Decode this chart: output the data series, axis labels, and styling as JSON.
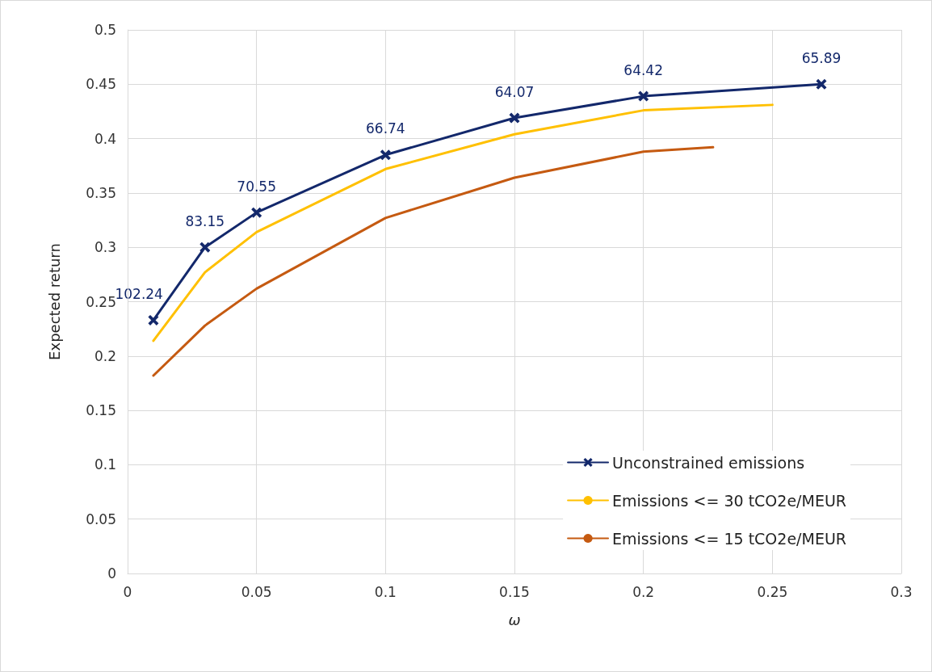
{
  "chart_data": {
    "type": "line",
    "xlabel": "ω",
    "ylabel": "Expected return",
    "xlim": [
      0,
      0.3
    ],
    "xticks": [
      0,
      0.05,
      0.1,
      0.15,
      0.2,
      0.25,
      0.3
    ],
    "ylim": [
      0,
      0.5
    ],
    "yticks": [
      0,
      0.05,
      0.1,
      0.15,
      0.2,
      0.25,
      0.3,
      0.35,
      0.4,
      0.45,
      0.5
    ],
    "grid": true,
    "annotations": [
      {
        "text": "102.24",
        "x": 0.01,
        "y": 0.233
      },
      {
        "text": "83.15",
        "x": 0.03,
        "y": 0.3
      },
      {
        "text": "70.55",
        "x": 0.05,
        "y": 0.332
      },
      {
        "text": "66.74",
        "x": 0.1,
        "y": 0.385
      },
      {
        "text": "64.07",
        "x": 0.15,
        "y": 0.419
      },
      {
        "text": "64.42",
        "x": 0.2,
        "y": 0.439
      },
      {
        "text": "65.89",
        "x": 0.269,
        "y": 0.45
      }
    ],
    "legend": "bottom right",
    "line_style": "solid",
    "series": [
      {
        "name": "Unconstrained emissions",
        "color": "#13286b",
        "marker": "cross",
        "x": [
          0.01,
          0.03,
          0.05,
          0.1,
          0.15,
          0.2,
          0.269
        ],
        "values": [
          0.233,
          0.3,
          0.332,
          0.385,
          0.419,
          0.439,
          0.45
        ]
      },
      {
        "name": "Emissions <= 30 tCO2e/MEUR",
        "color": "#ffc000",
        "marker": "none",
        "x": [
          0.01,
          0.03,
          0.05,
          0.1,
          0.15,
          0.2,
          0.25
        ],
        "values": [
          0.214,
          0.277,
          0.314,
          0.372,
          0.404,
          0.426,
          0.431
        ]
      },
      {
        "name": "Emissions <= 15 tCO2e/MEUR",
        "color": "#c55a11",
        "marker": "none",
        "x": [
          0.01,
          0.03,
          0.05,
          0.1,
          0.15,
          0.2,
          0.227
        ],
        "values": [
          0.182,
          0.228,
          0.262,
          0.327,
          0.364,
          0.388,
          0.392
        ]
      }
    ]
  }
}
